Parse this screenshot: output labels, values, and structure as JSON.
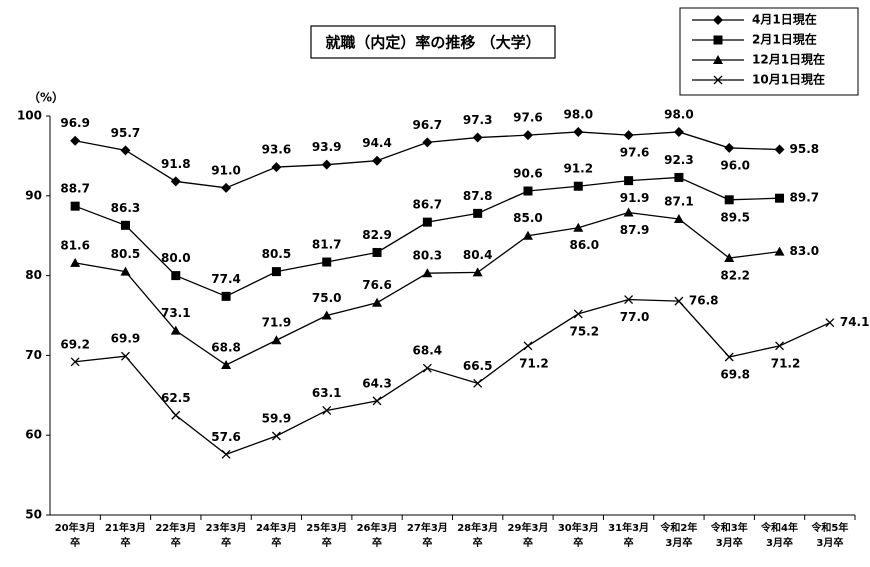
{
  "chart_data": {
    "type": "line",
    "title": "就職（内定）率の推移 （大学）",
    "y_unit": "（%）",
    "categories": [
      "20年3月\n卒",
      "21年3月\n卒",
      "22年3月\n卒",
      "23年3月\n卒",
      "24年3月\n卒",
      "25年3月\n卒",
      "26年3月\n卒",
      "27年3月\n卒",
      "28年3月\n卒",
      "29年3月\n卒",
      "30年3月\n卒",
      "31年3月\n卒",
      "令和2年\n3月卒",
      "令和3年\n3月卒",
      "令和4年\n3月卒",
      "令和5年\n3月卒"
    ],
    "series": [
      {
        "name": "4月1日現在",
        "color": "#000000",
        "marker": "diamond",
        "values": [
          96.9,
          95.7,
          91.8,
          91.0,
          93.6,
          93.9,
          94.4,
          96.7,
          97.3,
          97.6,
          98.0,
          97.6,
          98.0,
          96.0,
          95.8,
          null
        ],
        "value_labels": [
          "96.9",
          "95.7",
          "91.8",
          "91.0",
          "93.6",
          "93.9",
          "94.4",
          "96.7",
          "97.3",
          "97.6",
          "98.0",
          "97.6",
          "98.0",
          "96.0",
          "95.8",
          null
        ]
      },
      {
        "name": "2月1日現在",
        "color": "#000000",
        "marker": "square",
        "values": [
          88.7,
          86.3,
          80.0,
          77.4,
          80.5,
          81.7,
          82.9,
          86.7,
          87.8,
          90.6,
          91.2,
          91.9,
          92.3,
          89.5,
          89.7,
          null
        ],
        "value_labels": [
          "88.7",
          "86.3",
          "80.0",
          "77.4",
          "80.5",
          "81.7",
          "82.9",
          "86.7",
          "87.8",
          "90.6",
          "91.2",
          "91.9",
          "92.3",
          "89.5",
          "89.7",
          null
        ]
      },
      {
        "name": "12月1日現在",
        "color": "#000000",
        "marker": "triangle",
        "values": [
          81.6,
          80.5,
          73.1,
          68.8,
          71.9,
          75.0,
          76.6,
          80.3,
          80.4,
          85.0,
          86.0,
          87.9,
          87.1,
          82.2,
          83.0,
          null
        ],
        "value_labels": [
          "81.6",
          "80.5",
          "73.1",
          "68.8",
          "71.9",
          "75.0",
          "76.6",
          "80.3",
          "80.4",
          "85.0",
          "86.0",
          "87.9",
          "87.1",
          "82.2",
          "83.0",
          null
        ]
      },
      {
        "name": "10月1日現在",
        "color": "#000000",
        "marker": "x",
        "values": [
          69.2,
          69.9,
          62.5,
          57.6,
          59.9,
          63.1,
          64.3,
          68.4,
          66.5,
          71.2,
          75.2,
          77.0,
          76.8,
          69.8,
          71.2,
          74.1
        ],
        "value_labels": [
          "69.2",
          "69.9",
          "62.5",
          "57.6",
          "59.9",
          "63.1",
          "64.3",
          "68.4",
          "66.5",
          "71.2",
          "75.2",
          "77.0",
          "76.8",
          "69.8",
          "71.2",
          "74.1"
        ]
      }
    ],
    "ylim": [
      50,
      100
    ],
    "yticks": [
      50,
      60,
      70,
      80,
      90,
      100
    ],
    "grid": false,
    "legend": "top-right"
  }
}
